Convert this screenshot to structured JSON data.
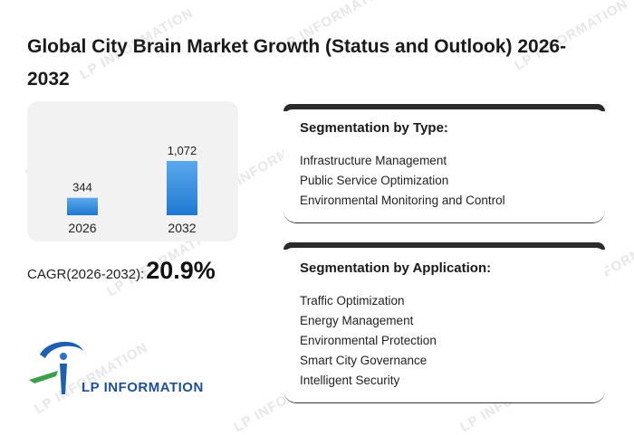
{
  "title": "Global City Brain Market Growth (Status and Outlook) 2026-2032",
  "chart_data": {
    "type": "bar",
    "categories": [
      "2026",
      "2032"
    ],
    "values": [
      344,
      1072
    ],
    "value_labels": [
      "344",
      "1,072"
    ],
    "colors": {
      "bar_top": "#5aa9ec",
      "bar_bottom": "#1f78d1"
    }
  },
  "cagr": {
    "label": "CAGR(2026-2032):",
    "value": "20.9%"
  },
  "segmentation_type": {
    "title": "Segmentation by Type:",
    "items": [
      "Infrastructure Management",
      "Public Service Optimization",
      "Environmental Monitoring and Control"
    ]
  },
  "segmentation_application": {
    "title": "Segmentation by Application:",
    "items": [
      "Traffic Optimization",
      "Energy Management",
      "Environmental Protection",
      "Smart City Governance",
      "Intelligent Security"
    ]
  },
  "logo": {
    "text": "LP INFORMATION",
    "icon": "lp-information-logo-icon"
  },
  "watermark": {
    "text": "LP INFORMATION"
  }
}
